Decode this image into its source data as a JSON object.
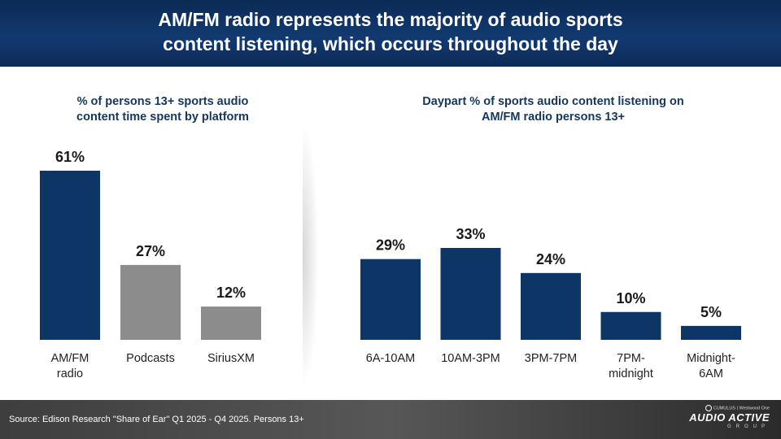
{
  "header": {
    "title_line1": "AM/FM radio represents the majority of audio sports",
    "title_line2": "content listening, which occurs throughout the day"
  },
  "colors": {
    "navy": "#0d3566",
    "gray": "#8c8c8c",
    "header_bg": "#0d2d5c",
    "label": "#222222"
  },
  "chart_data": [
    {
      "type": "bar",
      "title": "% of persons 13+ sports audio content time spent by platform",
      "title_lines": [
        "% of persons 13+ sports audio",
        "content time spent by platform"
      ],
      "categories": [
        [
          "AM/FM",
          "radio"
        ],
        [
          "Podcasts"
        ],
        [
          "SiriusXM"
        ]
      ],
      "values": [
        61,
        27,
        12
      ],
      "value_labels": [
        "61%",
        "27%",
        "12%"
      ],
      "bar_colors": [
        "#0d3566",
        "#8c8c8c",
        "#8c8c8c"
      ],
      "unit": "%",
      "ylim": [
        0,
        61
      ],
      "grid": false
    },
    {
      "type": "bar",
      "title": "Daypart % of sports audio content listening on AM/FM radio persons 13+",
      "title_lines": [
        "Daypart % of sports audio content listening on",
        "AM/FM radio persons 13+"
      ],
      "categories": [
        [
          "6A-10AM"
        ],
        [
          "10AM-3PM"
        ],
        [
          "3PM-7PM"
        ],
        [
          "7PM-",
          "midnight"
        ],
        [
          "Midnight-",
          "6AM"
        ]
      ],
      "values": [
        29,
        33,
        24,
        10,
        5
      ],
      "value_labels": [
        "29%",
        "33%",
        "24%",
        "10%",
        "5%"
      ],
      "bar_colors": [
        "#0d3566",
        "#0d3566",
        "#0d3566",
        "#0d3566",
        "#0d3566"
      ],
      "unit": "%",
      "ylim": [
        0,
        33
      ],
      "grid": false
    }
  ],
  "footer": {
    "source": "Source: Edison Research \"Share of Ear\" Q1 2025 - Q4 2025. Persons 13+",
    "logo_top_left": "CUMULUS",
    "logo_top_right": "Westwood One",
    "logo_main": "AUDIO ACTIVE",
    "logo_sub": "GROUP"
  }
}
